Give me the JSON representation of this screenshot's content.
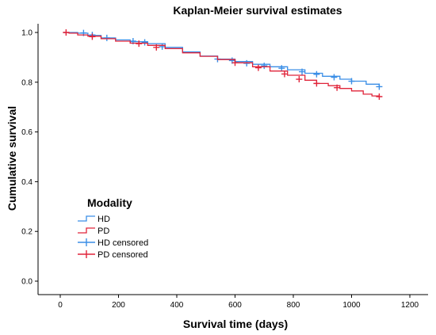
{
  "chart_data": {
    "type": "line",
    "title": "Kaplan-Meier survival estimates",
    "xlabel": "Survival time (days)",
    "ylabel": "Cumulative survival",
    "xlim": [
      0,
      1200
    ],
    "ylim": [
      0.0,
      1.0
    ],
    "x_ticks": [
      0,
      200,
      400,
      600,
      800,
      1000,
      1200
    ],
    "y_ticks": [
      0.0,
      0.2,
      0.4,
      0.6,
      0.8,
      1.0
    ],
    "grid": false,
    "legend": {
      "title": "Modality",
      "placement": "center-left",
      "entries": [
        "HD",
        "PD",
        "HD censored",
        "PD censored"
      ]
    },
    "series": [
      {
        "name": "HD",
        "color": "#3a8ee6",
        "x": [
          10,
          30,
          60,
          95,
          140,
          190,
          240,
          300,
          360,
          420,
          480,
          540,
          600,
          660,
          720,
          780,
          840,
          900,
          960,
          1000,
          1050,
          1095
        ],
        "y": [
          1.0,
          1.0,
          0.997,
          0.988,
          0.978,
          0.97,
          0.963,
          0.955,
          0.94,
          0.922,
          0.905,
          0.893,
          0.883,
          0.872,
          0.862,
          0.85,
          0.836,
          0.824,
          0.812,
          0.804,
          0.792,
          0.782
        ],
        "censored": [
          [
            80,
            0.998
          ],
          [
            110,
            0.99
          ],
          [
            160,
            0.978
          ],
          [
            250,
            0.965
          ],
          [
            290,
            0.96
          ],
          [
            350,
            0.943
          ],
          [
            540,
            0.893
          ],
          [
            590,
            0.887
          ],
          [
            640,
            0.876
          ],
          [
            700,
            0.866
          ],
          [
            760,
            0.856
          ],
          [
            830,
            0.842
          ],
          [
            880,
            0.832
          ],
          [
            940,
            0.82
          ],
          [
            1000,
            0.804
          ],
          [
            1095,
            0.782
          ]
        ]
      },
      {
        "name": "PD",
        "color": "#e0243a",
        "x": [
          10,
          30,
          60,
          95,
          140,
          190,
          240,
          300,
          360,
          420,
          480,
          540,
          600,
          660,
          720,
          780,
          840,
          880,
          920,
          960,
          1000,
          1040,
          1070,
          1095
        ],
        "y": [
          1.0,
          0.997,
          0.99,
          0.985,
          0.975,
          0.965,
          0.957,
          0.948,
          0.935,
          0.918,
          0.904,
          0.891,
          0.878,
          0.862,
          0.845,
          0.828,
          0.808,
          0.795,
          0.786,
          0.775,
          0.765,
          0.752,
          0.745,
          0.742
        ],
        "censored": [
          [
            20,
            1.0
          ],
          [
            110,
            0.983
          ],
          [
            270,
            0.955
          ],
          [
            330,
            0.94
          ],
          [
            600,
            0.878
          ],
          [
            680,
            0.858
          ],
          [
            770,
            0.833
          ],
          [
            820,
            0.812
          ],
          [
            880,
            0.795
          ],
          [
            950,
            0.778
          ],
          [
            1095,
            0.742
          ]
        ]
      }
    ]
  }
}
